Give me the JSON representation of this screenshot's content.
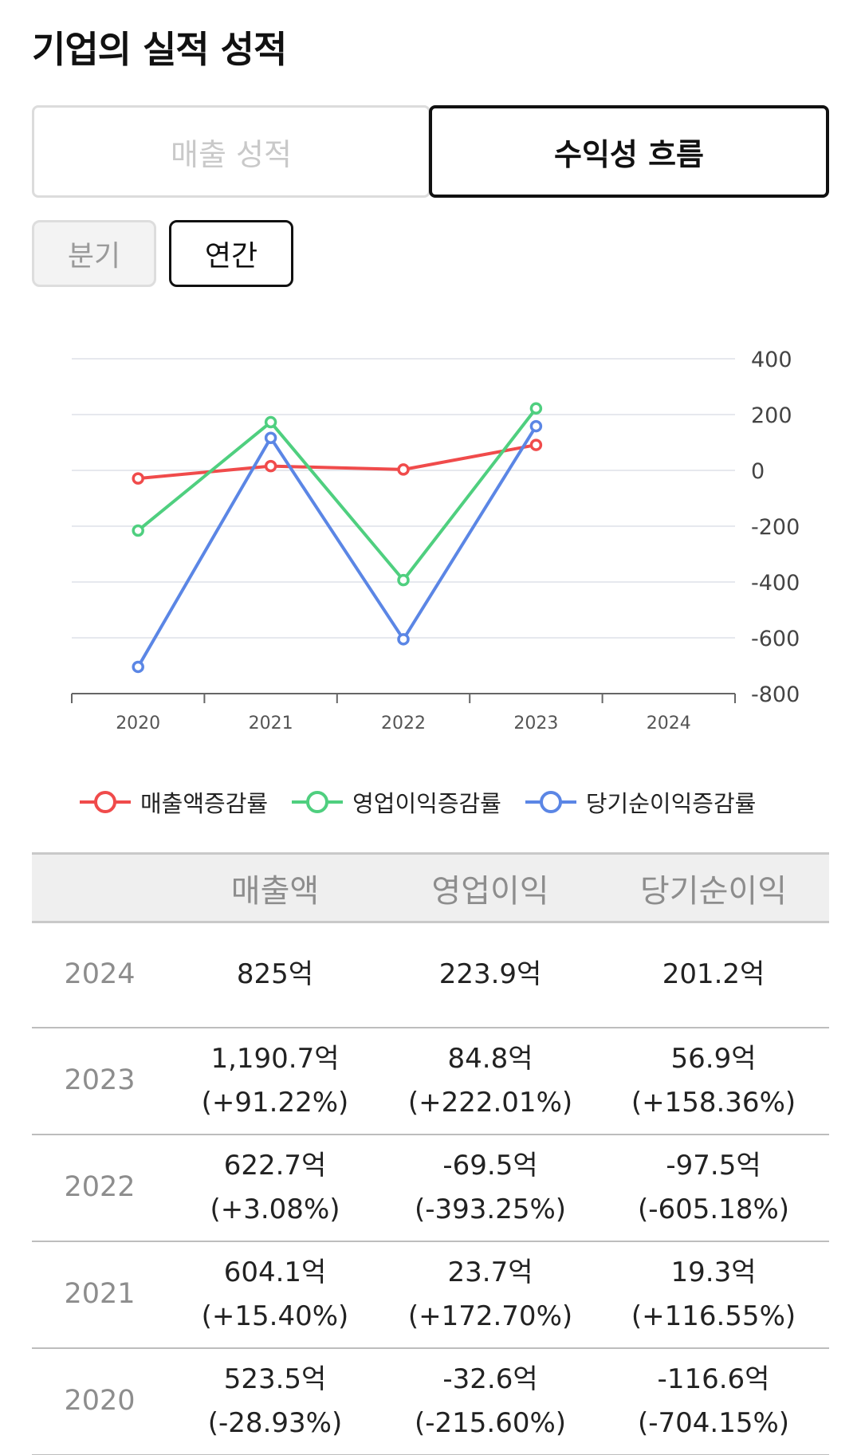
{
  "page": {
    "title": "기업의 실적 성적",
    "main_tabs": [
      {
        "label": "매출 성적",
        "active": false
      },
      {
        "label": "수익성 흐름",
        "active": true
      }
    ],
    "period_tabs": [
      {
        "label": "분기",
        "active": false
      },
      {
        "label": "연간",
        "active": true
      }
    ]
  },
  "chart_data": {
    "type": "line",
    "title": "",
    "xlabel": "",
    "ylabel": "",
    "categories": [
      "2020",
      "2021",
      "2022",
      "2023",
      "2024"
    ],
    "ylim": [
      -800,
      400
    ],
    "yticks": [
      "400",
      "200",
      "0",
      "-200",
      "-400",
      "-600",
      "-800"
    ],
    "y_axis_position": "right",
    "grid": true,
    "legend_position": "bottom",
    "series": [
      {
        "name": "매출액증감률",
        "color": "#f04b4b",
        "values": [
          -28.93,
          15.4,
          3.08,
          91.22,
          null
        ]
      },
      {
        "name": "영업이익증감률",
        "color": "#4fcf7f",
        "values": [
          -215.6,
          172.7,
          -393.25,
          222.01,
          null
        ]
      },
      {
        "name": "당기순이익증감률",
        "color": "#5b86e5",
        "values": [
          -704.15,
          116.55,
          -605.18,
          158.36,
          null
        ]
      }
    ]
  },
  "table": {
    "headers": [
      "",
      "매출액",
      "영업이익",
      "당기순이익"
    ],
    "rows": [
      {
        "year": "2024",
        "cells": [
          {
            "value": "825억",
            "change": ""
          },
          {
            "value": "223.9억",
            "change": ""
          },
          {
            "value": "201.2억",
            "change": ""
          }
        ]
      },
      {
        "year": "2023",
        "cells": [
          {
            "value": "1,190.7억",
            "change": "(+91.22%)"
          },
          {
            "value": "84.8억",
            "change": "(+222.01%)"
          },
          {
            "value": "56.9억",
            "change": "(+158.36%)"
          }
        ]
      },
      {
        "year": "2022",
        "cells": [
          {
            "value": "622.7억",
            "change": "(+3.08%)"
          },
          {
            "value": "-69.5억",
            "change": "(-393.25%)"
          },
          {
            "value": "-97.5억",
            "change": "(-605.18%)"
          }
        ]
      },
      {
        "year": "2021",
        "cells": [
          {
            "value": "604.1억",
            "change": "(+15.40%)"
          },
          {
            "value": "23.7억",
            "change": "(+172.70%)"
          },
          {
            "value": "19.3억",
            "change": "(+116.55%)"
          }
        ]
      },
      {
        "year": "2020",
        "cells": [
          {
            "value": "523.5억",
            "change": "(-28.93%)"
          },
          {
            "value": "-32.6억",
            "change": "(-215.60%)"
          },
          {
            "value": "-116.6억",
            "change": "(-704.15%)"
          }
        ]
      }
    ]
  }
}
